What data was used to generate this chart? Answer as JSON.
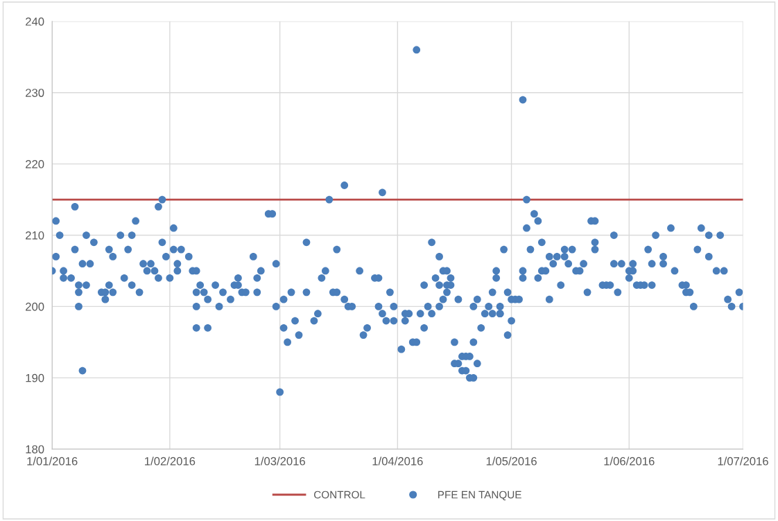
{
  "chart_data": {
    "type": "scatter",
    "xlim": [
      "2016-01-01",
      "2016-07-01"
    ],
    "xticks": [
      {
        "value": "2016-01-01",
        "label": "1/01/2016"
      },
      {
        "value": "2016-02-01",
        "label": "1/02/2016"
      },
      {
        "value": "2016-03-01",
        "label": "1/03/2016"
      },
      {
        "value": "2016-04-01",
        "label": "1/04/2016"
      },
      {
        "value": "2016-05-01",
        "label": "1/05/2016"
      },
      {
        "value": "2016-06-01",
        "label": "1/06/2016"
      },
      {
        "value": "2016-07-01",
        "label": "1/07/2016"
      }
    ],
    "ylim": [
      180,
      240
    ],
    "yticks": [
      180,
      190,
      200,
      210,
      220,
      230,
      240
    ],
    "grid": true,
    "legend": "bottom",
    "series": [
      {
        "name": "CONTROL",
        "type": "line",
        "color": "#b94a48",
        "marker": "none",
        "line_style": "solid",
        "x": [
          "2016-01-01",
          "2016-07-01"
        ],
        "values": [
          215,
          215
        ]
      },
      {
        "name": "PFE EN TANQUE",
        "color": "#4a7ebb",
        "marker": "circle",
        "x": [
          "2016-01-01",
          "2016-01-02",
          "2016-01-02",
          "2016-01-03",
          "2016-01-04",
          "2016-01-04",
          "2016-01-06",
          "2016-01-07",
          "2016-01-07",
          "2016-01-08",
          "2016-01-08",
          "2016-01-08",
          "2016-01-09",
          "2016-01-09",
          "2016-01-10",
          "2016-01-10",
          "2016-01-11",
          "2016-01-12",
          "2016-01-14",
          "2016-01-15",
          "2016-01-15",
          "2016-01-16",
          "2016-01-16",
          "2016-01-17",
          "2016-01-17",
          "2016-01-19",
          "2016-01-20",
          "2016-01-21",
          "2016-01-22",
          "2016-01-22",
          "2016-01-23",
          "2016-01-24",
          "2016-01-25",
          "2016-01-26",
          "2016-01-27",
          "2016-01-28",
          "2016-01-29",
          "2016-01-29",
          "2016-01-30",
          "2016-01-30",
          "2016-01-31",
          "2016-02-01",
          "2016-02-02",
          "2016-02-02",
          "2016-02-03",
          "2016-02-03",
          "2016-02-04",
          "2016-02-06",
          "2016-02-07",
          "2016-02-08",
          "2016-02-08",
          "2016-02-08",
          "2016-02-08",
          "2016-02-09",
          "2016-02-10",
          "2016-02-11",
          "2016-02-11",
          "2016-02-13",
          "2016-02-14",
          "2016-02-15",
          "2016-02-17",
          "2016-02-18",
          "2016-02-19",
          "2016-02-19",
          "2016-02-20",
          "2016-02-21",
          "2016-02-23",
          "2016-02-24",
          "2016-02-24",
          "2016-02-25",
          "2016-02-27",
          "2016-02-28",
          "2016-02-29",
          "2016-02-29",
          "2016-03-01",
          "2016-03-02",
          "2016-03-02",
          "2016-03-03",
          "2016-03-04",
          "2016-03-05",
          "2016-03-06",
          "2016-03-08",
          "2016-03-08",
          "2016-03-10",
          "2016-03-11",
          "2016-03-12",
          "2016-03-13",
          "2016-03-14",
          "2016-03-15",
          "2016-03-16",
          "2016-03-16",
          "2016-03-18",
          "2016-03-18",
          "2016-03-19",
          "2016-03-20",
          "2016-03-22",
          "2016-03-23",
          "2016-03-24",
          "2016-03-26",
          "2016-03-27",
          "2016-03-27",
          "2016-03-28",
          "2016-03-28",
          "2016-03-29",
          "2016-03-30",
          "2016-03-31",
          "2016-03-31",
          "2016-04-02",
          "2016-04-03",
          "2016-04-03",
          "2016-04-04",
          "2016-04-05",
          "2016-04-06",
          "2016-04-06",
          "2016-04-07",
          "2016-04-08",
          "2016-04-08",
          "2016-04-09",
          "2016-04-10",
          "2016-04-10",
          "2016-04-11",
          "2016-04-12",
          "2016-04-12",
          "2016-04-12",
          "2016-04-13",
          "2016-04-13",
          "2016-04-14",
          "2016-04-14",
          "2016-04-14",
          "2016-04-15",
          "2016-04-15",
          "2016-04-16",
          "2016-04-16",
          "2016-04-17",
          "2016-04-17",
          "2016-04-18",
          "2016-04-18",
          "2016-04-19",
          "2016-04-19",
          "2016-04-20",
          "2016-04-20",
          "2016-04-21",
          "2016-04-21",
          "2016-04-21",
          "2016-04-22",
          "2016-04-22",
          "2016-04-23",
          "2016-04-24",
          "2016-04-25",
          "2016-04-26",
          "2016-04-26",
          "2016-04-27",
          "2016-04-27",
          "2016-04-28",
          "2016-04-28",
          "2016-04-28",
          "2016-04-29",
          "2016-04-30",
          "2016-04-30",
          "2016-05-01",
          "2016-05-01",
          "2016-05-02",
          "2016-05-03",
          "2016-05-04",
          "2016-05-04",
          "2016-05-04",
          "2016-05-05",
          "2016-05-05",
          "2016-05-06",
          "2016-05-07",
          "2016-05-08",
          "2016-05-08",
          "2016-05-09",
          "2016-05-09",
          "2016-05-10",
          "2016-05-11",
          "2016-05-11",
          "2016-05-12",
          "2016-05-13",
          "2016-05-14",
          "2016-05-15",
          "2016-05-15",
          "2016-05-16",
          "2016-05-17",
          "2016-05-18",
          "2016-05-19",
          "2016-05-20",
          "2016-05-21",
          "2016-05-22",
          "2016-05-23",
          "2016-05-23",
          "2016-05-23",
          "2016-05-25",
          "2016-05-26",
          "2016-05-27",
          "2016-05-28",
          "2016-05-28",
          "2016-05-29",
          "2016-05-30",
          "2016-06-01",
          "2016-06-01",
          "2016-06-02",
          "2016-06-02",
          "2016-06-03",
          "2016-06-04",
          "2016-06-05",
          "2016-06-06",
          "2016-06-07",
          "2016-06-07",
          "2016-06-08",
          "2016-06-10",
          "2016-06-10",
          "2016-06-12",
          "2016-06-13",
          "2016-06-15",
          "2016-06-16",
          "2016-06-16",
          "2016-06-17",
          "2016-06-18",
          "2016-06-19",
          "2016-06-20",
          "2016-06-22",
          "2016-06-22",
          "2016-06-24",
          "2016-06-25",
          "2016-06-26",
          "2016-06-27",
          "2016-06-28",
          "2016-06-30",
          "2016-07-01"
        ],
        "values": [
          205,
          212,
          207,
          210,
          205,
          204,
          204,
          214,
          208,
          203,
          202,
          200,
          206,
          191,
          210,
          203,
          206,
          209,
          202,
          202,
          201,
          208,
          203,
          207,
          202,
          210,
          204,
          208,
          210,
          203,
          212,
          202,
          206,
          205,
          206,
          205,
          214,
          204,
          209,
          215,
          207,
          204,
          211,
          208,
          205,
          206,
          208,
          207,
          205,
          202,
          205,
          200,
          197,
          203,
          202,
          201,
          197,
          203,
          200,
          202,
          201,
          203,
          204,
          203,
          202,
          202,
          207,
          204,
          202,
          205,
          213,
          213,
          206,
          200,
          188,
          197,
          201,
          195,
          202,
          198,
          196,
          209,
          202,
          198,
          199,
          204,
          205,
          215,
          202,
          208,
          202,
          217,
          201,
          200,
          200,
          205,
          196,
          197,
          204,
          204,
          200,
          216,
          199,
          198,
          202,
          198,
          200,
          194,
          198,
          199,
          199,
          195,
          236,
          195,
          199,
          197,
          203,
          200,
          209,
          199,
          204,
          203,
          207,
          200,
          205,
          201,
          202,
          205,
          203,
          204,
          203,
          195,
          192,
          192,
          201,
          193,
          191,
          191,
          193,
          193,
          190,
          190,
          195,
          200,
          192,
          201,
          197,
          199,
          200,
          202,
          199,
          205,
          204,
          199,
          200,
          199,
          208,
          196,
          202,
          198,
          201,
          201,
          201,
          229,
          205,
          204,
          211,
          215,
          208,
          213,
          212,
          204,
          209,
          205,
          205,
          201,
          207,
          206,
          207,
          203,
          207,
          208,
          206,
          208,
          205,
          205,
          206,
          202,
          212,
          212,
          208,
          209,
          203,
          203,
          203,
          210,
          206,
          202,
          206,
          205,
          204,
          206,
          205,
          203,
          203,
          203,
          208,
          206,
          203,
          210,
          207,
          206,
          211,
          205,
          203,
          203,
          202,
          202,
          200,
          208,
          211,
          210,
          207,
          205,
          210,
          205,
          201,
          200,
          202,
          200
        ]
      }
    ]
  }
}
